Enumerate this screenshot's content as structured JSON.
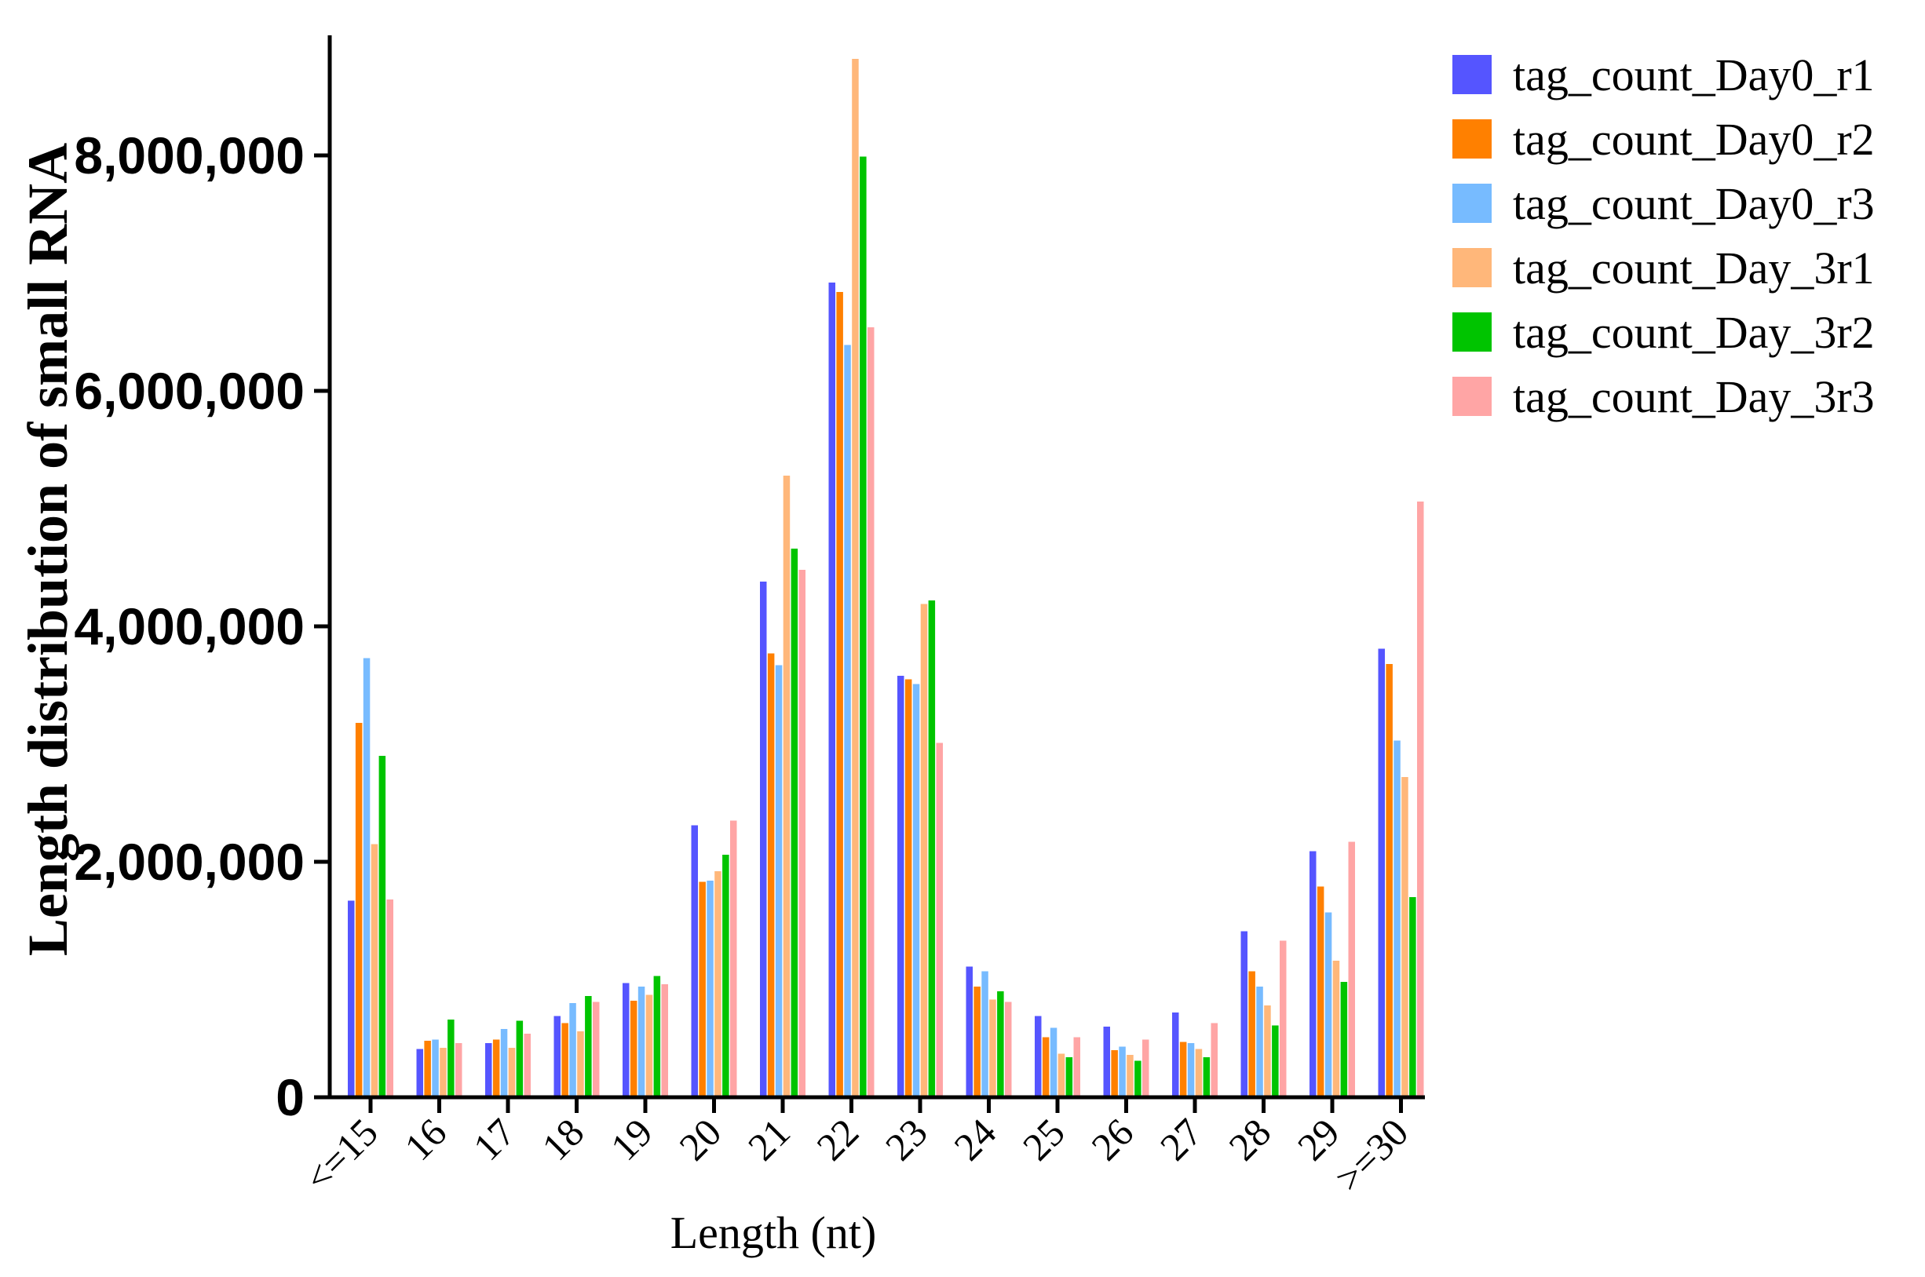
{
  "chart_data": {
    "type": "bar",
    "title": "",
    "xlabel": "Length (nt)",
    "ylabel": "Length distribution of small RNA",
    "ylim": [
      0,
      9000000
    ],
    "yticks": [
      0,
      2000000,
      4000000,
      6000000,
      8000000
    ],
    "ytick_labels": [
      "0",
      "2,000,000",
      "4,000,000",
      "6,000,000",
      "8,000,000"
    ],
    "grid": false,
    "legend_position": "top-right",
    "categories": [
      "<=15",
      "16",
      "17",
      "18",
      "19",
      "20",
      "21",
      "22",
      "23",
      "24",
      "25",
      "26",
      "27",
      "28",
      "29",
      ">=30"
    ],
    "series": [
      {
        "name": "tag_count_Day0_r1",
        "color": "#5555FF",
        "values": [
          1670000,
          410000,
          460000,
          690000,
          970000,
          2310000,
          4380000,
          6920000,
          3580000,
          1110000,
          690000,
          600000,
          720000,
          1410000,
          2090000,
          3810000
        ]
      },
      {
        "name": "tag_count_Day0_r2",
        "color": "#FF8000",
        "values": [
          3180000,
          480000,
          490000,
          630000,
          820000,
          1830000,
          3770000,
          6840000,
          3550000,
          940000,
          510000,
          400000,
          470000,
          1070000,
          1790000,
          3680000
        ]
      },
      {
        "name": "tag_count_Day0_r3",
        "color": "#77BBFF",
        "values": [
          3730000,
          490000,
          580000,
          800000,
          940000,
          1840000,
          3670000,
          6390000,
          3510000,
          1070000,
          590000,
          430000,
          460000,
          940000,
          1570000,
          3030000
        ]
      },
      {
        "name": "tag_count_Day_3r1",
        "color": "#FFB77A",
        "values": [
          2150000,
          420000,
          420000,
          560000,
          870000,
          1920000,
          5280000,
          8820000,
          4190000,
          830000,
          370000,
          360000,
          410000,
          780000,
          1160000,
          2720000
        ]
      },
      {
        "name": "tag_count_Day_3r2",
        "color": "#00C400",
        "values": [
          2900000,
          660000,
          650000,
          860000,
          1030000,
          2060000,
          4660000,
          7990000,
          4220000,
          900000,
          340000,
          310000,
          340000,
          610000,
          980000,
          1700000
        ]
      },
      {
        "name": "tag_count_Day_3r3",
        "color": "#FFA5A5",
        "values": [
          1680000,
          460000,
          540000,
          810000,
          960000,
          2350000,
          4480000,
          6540000,
          3010000,
          810000,
          510000,
          490000,
          630000,
          1330000,
          2170000,
          5060000
        ]
      }
    ]
  }
}
